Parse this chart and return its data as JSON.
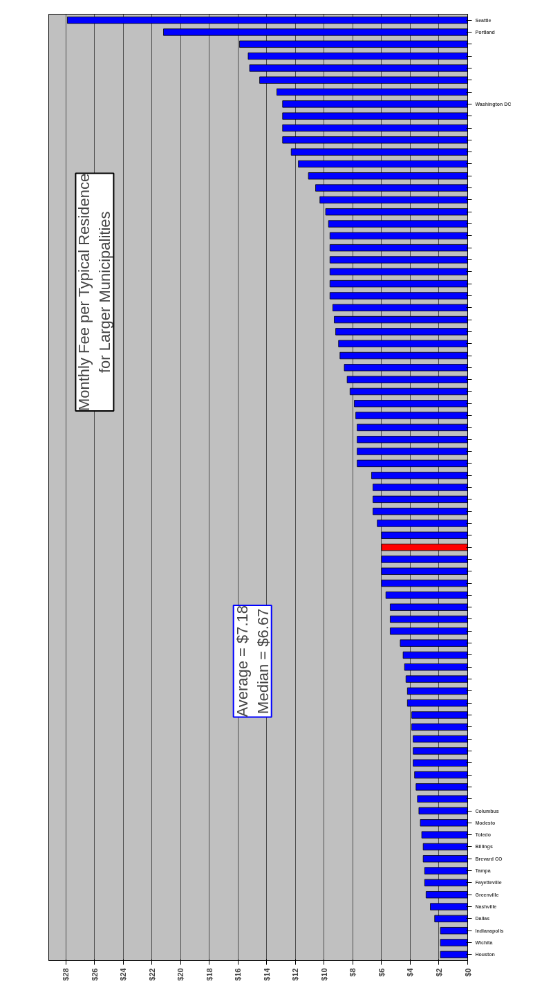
{
  "chart_data": {
    "type": "bar",
    "orientation": "horizontal",
    "title": "Monthly Fee per Typical Residence\nfor Larger Municipalities",
    "annotations": [
      "Average = $7.18\nMedian = $6.67"
    ],
    "categories": [
      "Seattle",
      "Portland",
      null,
      null,
      null,
      null,
      null,
      "Washington DC",
      null,
      null,
      null,
      null,
      null,
      null,
      null,
      null,
      null,
      null,
      null,
      null,
      null,
      null,
      null,
      null,
      null,
      null,
      null,
      null,
      null,
      null,
      null,
      null,
      null,
      null,
      null,
      null,
      null,
      null,
      null,
      null,
      null,
      null,
      null,
      null,
      null,
      null,
      null,
      null,
      null,
      null,
      null,
      null,
      null,
      null,
      null,
      null,
      null,
      null,
      null,
      null,
      null,
      null,
      null,
      null,
      null,
      null,
      "Columbus",
      "Modesto",
      "Toledo",
      "Billings",
      "Brevard CO",
      "Tampa",
      "Fayetteville",
      "Greenville",
      "Nashville",
      "Dallas",
      "Indianapolis",
      "Wichita",
      "Houston"
    ],
    "values": [
      27.9,
      21.2,
      15.9,
      15.3,
      15.2,
      14.5,
      13.3,
      12.9,
      12.9,
      12.9,
      12.9,
      12.3,
      11.8,
      11.1,
      10.6,
      10.3,
      9.9,
      9.7,
      9.6,
      9.6,
      9.6,
      9.6,
      9.6,
      9.6,
      9.4,
      9.3,
      9.2,
      9.0,
      8.9,
      8.6,
      8.4,
      8.2,
      7.9,
      7.8,
      7.7,
      7.7,
      7.7,
      7.7,
      6.7,
      6.6,
      6.6,
      6.6,
      6.3,
      6.0,
      6.0,
      6.0,
      6.0,
      6.0,
      5.7,
      5.4,
      5.4,
      5.4,
      4.7,
      4.5,
      4.4,
      4.3,
      4.2,
      4.2,
      3.9,
      3.9,
      3.8,
      3.8,
      3.8,
      3.7,
      3.6,
      3.5,
      3.4,
      3.3,
      3.2,
      3.1,
      3.1,
      3.0,
      3.0,
      2.9,
      2.6,
      2.3,
      1.9,
      1.9,
      1.9
    ],
    "colors": [
      "#0000ff",
      "#0000ff",
      "#0000ff",
      "#0000ff",
      "#0000ff",
      "#0000ff",
      "#0000ff",
      "#0000ff",
      "#0000ff",
      "#0000ff",
      "#0000ff",
      "#0000ff",
      "#0000ff",
      "#0000ff",
      "#0000ff",
      "#0000ff",
      "#0000ff",
      "#0000ff",
      "#0000ff",
      "#0000ff",
      "#0000ff",
      "#0000ff",
      "#0000ff",
      "#0000ff",
      "#0000ff",
      "#0000ff",
      "#0000ff",
      "#0000ff",
      "#0000ff",
      "#0000ff",
      "#0000ff",
      "#0000ff",
      "#0000ff",
      "#0000ff",
      "#0000ff",
      "#0000ff",
      "#0000ff",
      "#0000ff",
      "#0000ff",
      "#0000ff",
      "#0000ff",
      "#0000ff",
      "#0000ff",
      "#0000ff",
      "#ff0000",
      "#0000ff",
      "#0000ff",
      "#0000ff",
      "#0000ff",
      "#0000ff",
      "#0000ff",
      "#0000ff",
      "#0000ff",
      "#0000ff",
      "#0000ff",
      "#0000ff",
      "#0000ff",
      "#0000ff",
      "#0000ff",
      "#0000ff",
      "#0000ff",
      "#0000ff",
      "#0000ff",
      "#0000ff",
      "#0000ff",
      "#0000ff",
      "#0000ff",
      "#0000ff",
      "#0000ff",
      "#0000ff",
      "#0000ff",
      "#0000ff",
      "#0000ff",
      "#0000ff",
      "#0000ff",
      "#0000ff",
      "#0000ff",
      "#0000ff",
      "#0000ff"
    ],
    "xlim": [
      29.2,
      0
    ],
    "xticks": [
      {
        "value": 28,
        "label": "$28"
      },
      {
        "value": 26,
        "label": "$26"
      },
      {
        "value": 24,
        "label": "$24"
      },
      {
        "value": 22,
        "label": "$22"
      },
      {
        "value": 20,
        "label": "$20"
      },
      {
        "value": 18,
        "label": "$18"
      },
      {
        "value": 16,
        "label": "$16"
      },
      {
        "value": 14,
        "label": "$14"
      },
      {
        "value": 12,
        "label": "$12"
      },
      {
        "value": 10,
        "label": "$10"
      },
      {
        "value": 8,
        "label": "$8"
      },
      {
        "value": 6,
        "label": "$6"
      },
      {
        "value": 4,
        "label": "$4"
      },
      {
        "value": 2,
        "label": "$2"
      },
      {
        "value": 0,
        "label": "$0"
      }
    ],
    "grid": "x"
  }
}
